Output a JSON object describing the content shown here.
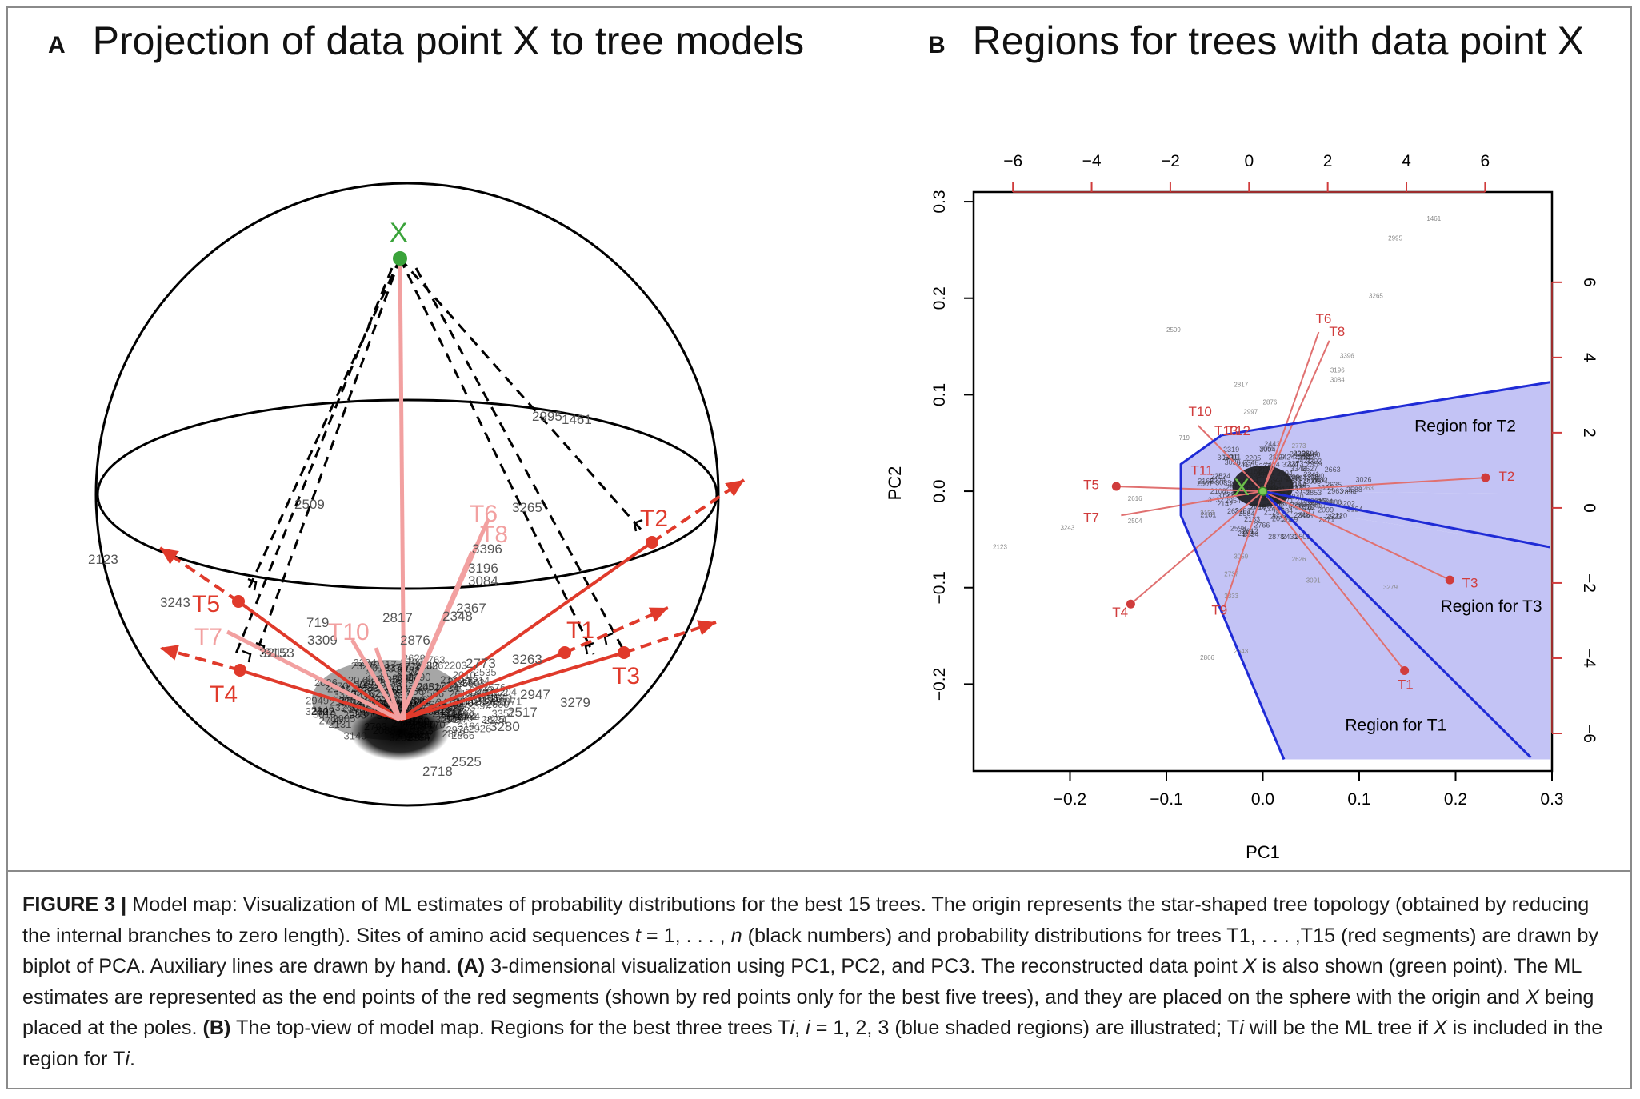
{
  "panelA": {
    "letter": "A",
    "title": "Projection of data point X to tree models",
    "x_label": "X",
    "tree_labels": {
      "T1": "T1",
      "T2": "T2",
      "T3": "T3",
      "T4": "T4",
      "T5": "T5",
      "T6": "T6",
      "T7": "T7",
      "T8": "T8",
      "T10": "T10"
    },
    "site_labels": [
      "2995",
      "1461",
      "2509",
      "3265",
      "2123",
      "3396",
      "3196",
      "3084",
      "2367",
      "2348",
      "3243",
      "719",
      "2817",
      "2876",
      "3309",
      "3153",
      "2773",
      "3263",
      "2947",
      "3279",
      "3280",
      "2525",
      "2718",
      "3212",
      "2517"
    ]
  },
  "panelB": {
    "letter": "B",
    "title": "Regions for trees with data point X",
    "xlabel": "PC1",
    "ylabel": "PC2",
    "x_label": "X",
    "region_labels": [
      "Region for T2",
      "Region for T3",
      "Region for T1"
    ],
    "tree_labels": [
      "T1",
      "T2",
      "T3",
      "T4",
      "T5",
      "T6",
      "T7",
      "T8",
      "T9",
      "T10",
      "T12",
      "T13",
      "T11"
    ],
    "site_labels": [
      "1461",
      "2995",
      "3265",
      "2509",
      "3396",
      "3196",
      "3084",
      "2817",
      "2876",
      "2997",
      "719",
      "3153",
      "3243",
      "2504",
      "2616",
      "2123",
      "3263",
      "3091",
      "3279",
      "2866",
      "2643",
      "2773",
      "2737",
      "3059",
      "2626",
      "3333"
    ]
  },
  "chart_data": {
    "type": "scatter",
    "title": "Regions for trees with data point X",
    "xlabel": "PC1",
    "ylabel": "PC2",
    "xlim": [
      -0.3,
      0.3
    ],
    "ylim": [
      -0.29,
      0.31
    ],
    "x_ticks": [
      "−0.2",
      "−0.1",
      "0.0",
      "0.1",
      "0.2",
      "0.3"
    ],
    "y_ticks": [
      "−0.2",
      "−0.1",
      "0.0",
      "0.1",
      "0.2",
      "0.3"
    ],
    "top_ticks": [
      "−6",
      "−4",
      "−2",
      "0",
      "2",
      "4",
      "6"
    ],
    "right_ticks": [
      "−6",
      "−4",
      "−2",
      "0",
      "2",
      "4",
      "6"
    ],
    "top_lim": [
      -7.0,
      7.7
    ],
    "right_lim": [
      -7.0,
      8.4
    ],
    "x_tick_values": [
      -0.2,
      -0.1,
      0.0,
      0.1,
      0.2,
      0.3
    ],
    "y_tick_values": [
      -0.2,
      -0.1,
      0.0,
      0.1,
      0.2,
      0.3
    ],
    "top_tick_values": [
      -6,
      -4,
      -2,
      0,
      2,
      4,
      6
    ],
    "right_tick_values": [
      -6,
      -4,
      -2,
      0,
      2,
      4,
      6
    ],
    "x_point": {
      "label": "X",
      "x": 0.0,
      "y": 0.0
    },
    "trees": [
      {
        "name": "T1",
        "x": 0.147,
        "y": -0.186,
        "dot": true
      },
      {
        "name": "T2",
        "x": 0.231,
        "y": 0.014,
        "dot": true
      },
      {
        "name": "T3",
        "x": 0.194,
        "y": -0.092,
        "dot": true
      },
      {
        "name": "T4",
        "x": -0.137,
        "y": -0.117,
        "dot": true
      },
      {
        "name": "T5",
        "x": -0.152,
        "y": 0.005,
        "dot": true
      },
      {
        "name": "T6",
        "x": 0.058,
        "y": 0.165,
        "dot": false
      },
      {
        "name": "T7",
        "x": -0.147,
        "y": -0.025,
        "dot": false
      },
      {
        "name": "T8",
        "x": 0.069,
        "y": 0.156,
        "dot": false
      },
      {
        "name": "T9",
        "x": -0.04,
        "y": -0.12,
        "dot": false
      },
      {
        "name": "T10",
        "x": -0.067,
        "y": 0.068,
        "dot": false
      }
    ],
    "regions": [
      {
        "name": "Region for T2",
        "polygon": [
          [
            -0.043,
            0.058
          ],
          [
            0.298,
            0.113
          ],
          [
            0.298,
            -0.003
          ],
          [
            0.03,
            0.0
          ],
          [
            -0.043,
            0.058
          ]
        ]
      },
      {
        "name": "Region for T3",
        "polygon": [
          [
            0.03,
            0.0
          ],
          [
            0.298,
            -0.003
          ],
          [
            0.298,
            -0.058
          ],
          [
            0.075,
            -0.025
          ],
          [
            0.03,
            0.0
          ]
        ]
      },
      {
        "name": "Region for T1",
        "polygon": [
          [
            -0.085,
            0.028
          ],
          [
            -0.043,
            0.058
          ],
          [
            0.03,
            0.0
          ],
          [
            0.075,
            -0.025
          ],
          [
            0.298,
            -0.058
          ],
          [
            0.298,
            -0.278
          ],
          [
            0.022,
            -0.278
          ],
          [
            -0.085,
            -0.025
          ],
          [
            -0.085,
            0.028
          ]
        ]
      }
    ],
    "region_boundaries": [
      [
        [
          -0.043,
          0.058
        ],
        [
          0.298,
          0.113
        ]
      ],
      [
        [
          0.0,
          0.0
        ],
        [
          0.298,
          -0.058
        ]
      ],
      [
        [
          0.0,
          0.0
        ],
        [
          0.278,
          -0.276
        ]
      ],
      [
        [
          -0.043,
          0.058
        ],
        [
          -0.085,
          0.028
        ],
        [
          -0.085,
          -0.025
        ],
        [
          0.022,
          -0.278
        ]
      ]
    ]
  },
  "caption": {
    "fig_label": "FIGURE 3 |",
    "text1": " Model map: Visualization of ML estimates of probability distributions for the best 15 trees. The origin represents the star-shaped tree topology (obtained by reducing the internal branches to zero length). Sites of amino acid sequences ",
    "math1": "t",
    "text2": " = 1, . . . , ",
    "math2": "n",
    "text3": " (black numbers) and probability distributions for trees T1, . . . ,T15 (red segments) are drawn by biplot of PCA. Auxiliary lines are drawn by hand. ",
    "bold_a": "(A)",
    "text4": " 3-dimensional visualization using PC1, PC2, and PC3. The reconstructed data point ",
    "math3": "X",
    "text5": " is also shown (green point). The ML estimates are represented as the end points of the red segments (shown by red points only for the best five trees), and they are placed on the sphere with the origin and ",
    "math4": "X",
    "text6": " being placed at the poles. ",
    "bold_b": "(B)",
    "text7": " The top-view of model map. Regions for the best three trees T",
    "math5": "i",
    "text8": ", ",
    "math6": "i",
    "text9": " = 1, 2, 3 (blue shaded regions) are illustrated; T",
    "math7": "i",
    "text10": " will be the ML tree if ",
    "math8": "X",
    "text11": " is included in the region for T",
    "math9": "i",
    "text12": "."
  }
}
